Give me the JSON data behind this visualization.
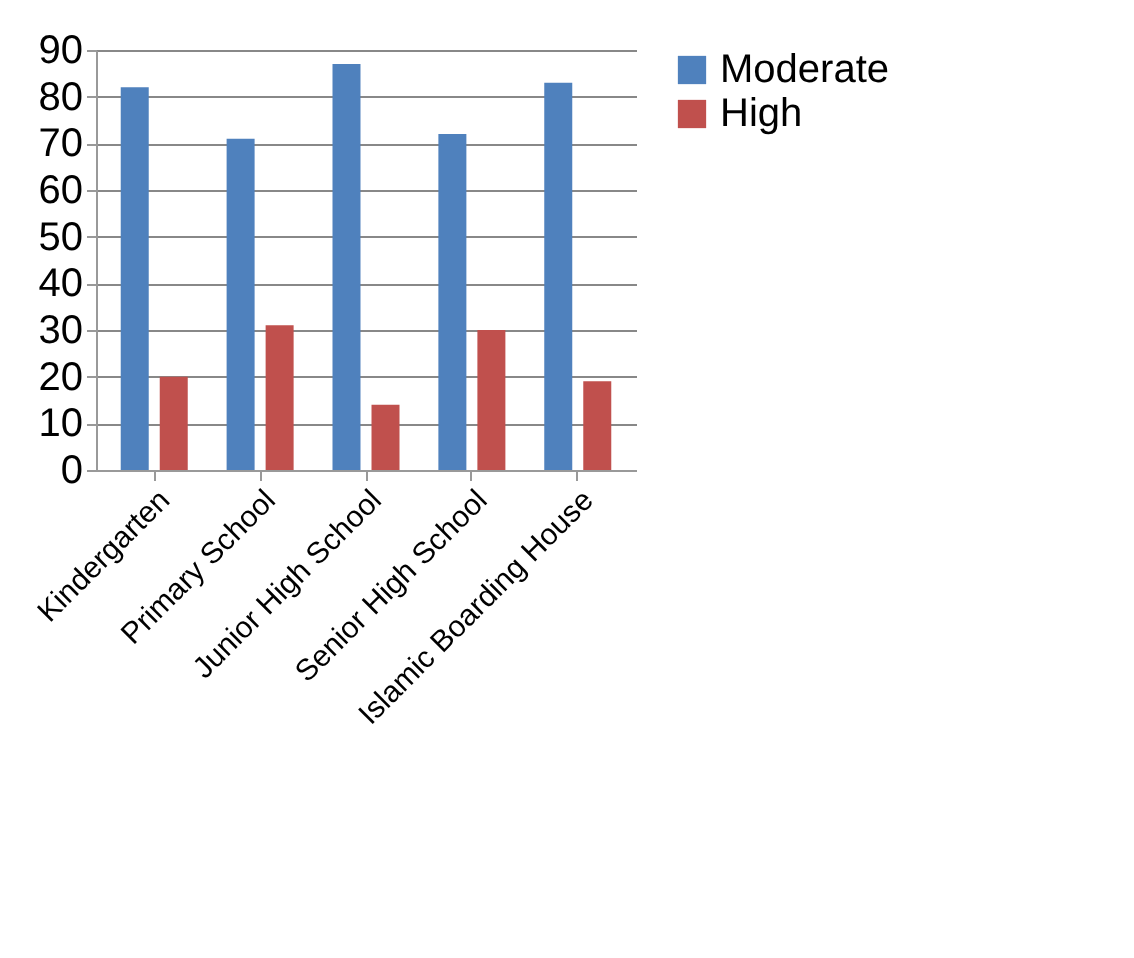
{
  "chart_data": {
    "type": "bar",
    "categories": [
      "Kindergarten",
      "Primary School",
      "Junior High School",
      "Senior High School",
      "Islamic Boarding House"
    ],
    "series": [
      {
        "name": "Moderate",
        "color": "#4f81bd",
        "values": [
          82,
          71,
          87,
          72,
          83
        ]
      },
      {
        "name": "High",
        "color": "#c0504d",
        "values": [
          20,
          31,
          14,
          30,
          19
        ]
      }
    ],
    "ylim": [
      0,
      90
    ],
    "yticks": [
      0,
      10,
      20,
      30,
      40,
      50,
      60,
      70,
      80,
      90
    ],
    "grid": "y",
    "legend": "right"
  }
}
